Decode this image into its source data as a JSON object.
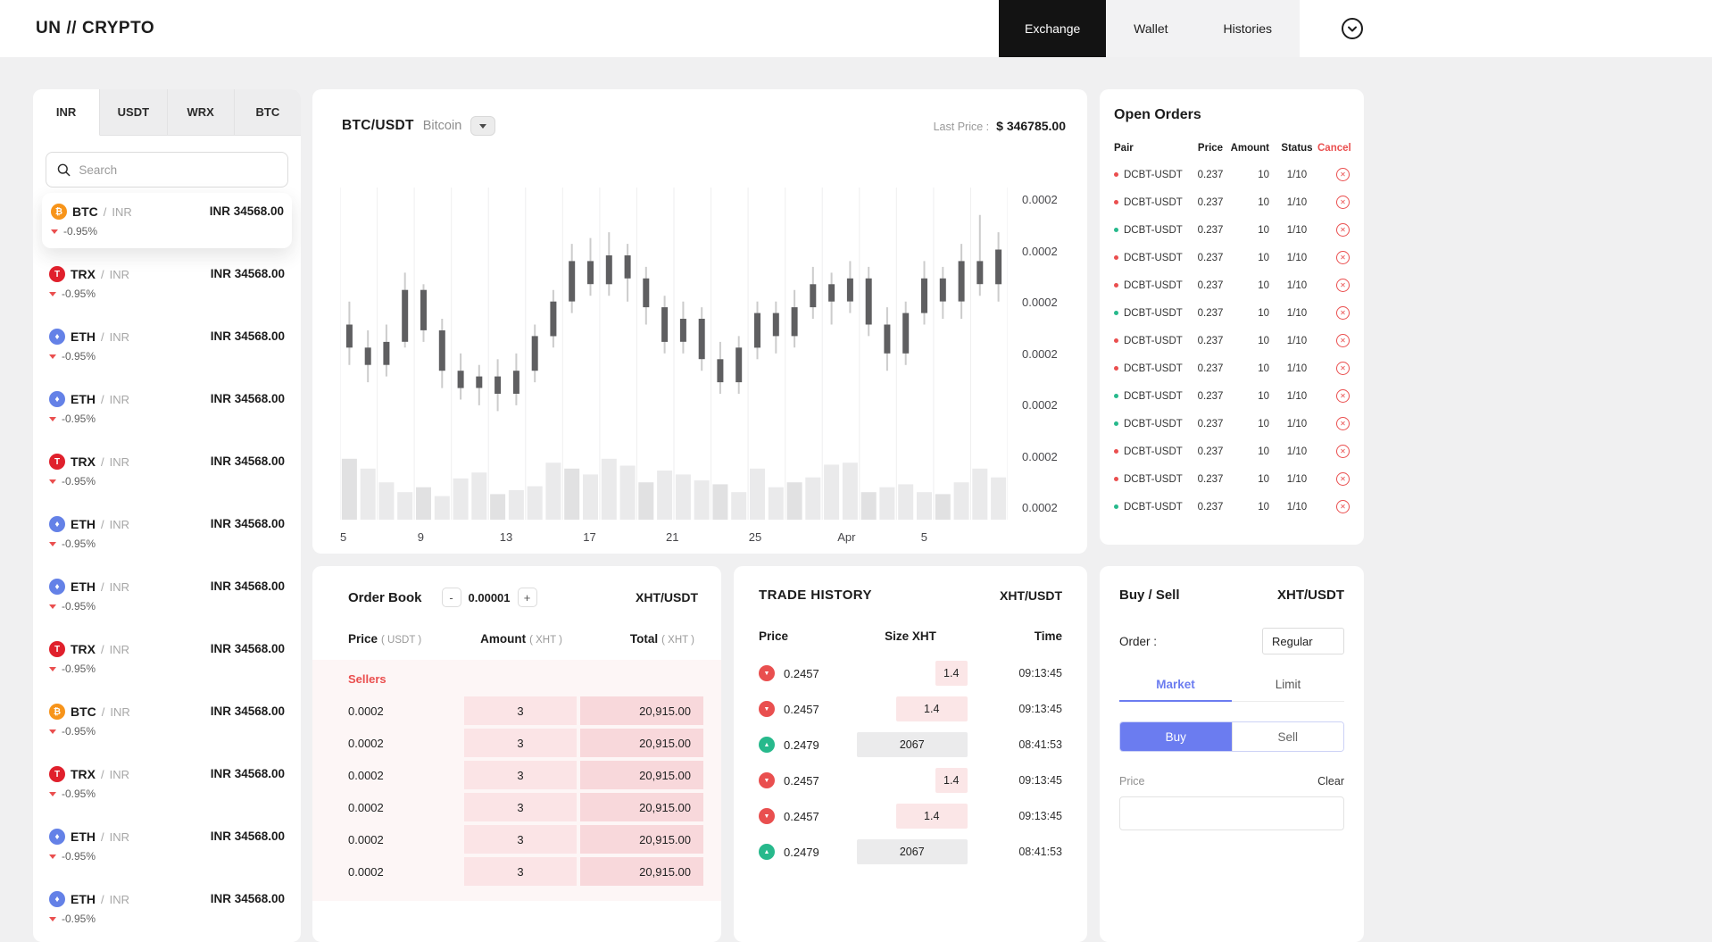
{
  "colors": {
    "accent": "#6b7cf0",
    "red": "#ea4f4f",
    "green": "#27b98c",
    "btc": "#f7941a",
    "trx": "#e0202c",
    "eth": "#6481e7"
  },
  "nav": {
    "logo": {
      "left": "UN",
      "slashes": "//",
      "right": "CRYPTO"
    },
    "items": [
      {
        "label": "Exchange"
      },
      {
        "label": "Wallet"
      },
      {
        "label": "Histories"
      }
    ]
  },
  "sidebar": {
    "tabs": [
      "INR",
      "USDT",
      "WRX",
      "BTC"
    ],
    "search_placeholder": "Search",
    "pairs": [
      {
        "icon": "btc",
        "symbol": "BTC",
        "sep": "/",
        "quote": "INR",
        "change": "-0.95%",
        "price": "INR 34568.00"
      },
      {
        "icon": "trx",
        "symbol": "TRX",
        "sep": "/",
        "quote": "INR",
        "change": "-0.95%",
        "price": "INR 34568.00"
      },
      {
        "icon": "eth",
        "symbol": "ETH",
        "sep": "/",
        "quote": "INR",
        "change": "-0.95%",
        "price": "INR 34568.00"
      },
      {
        "icon": "eth",
        "symbol": "ETH",
        "sep": "/",
        "quote": "INR",
        "change": "-0.95%",
        "price": "INR 34568.00"
      },
      {
        "icon": "trx",
        "symbol": "TRX",
        "sep": "/",
        "quote": "INR",
        "change": "-0.95%",
        "price": "INR 34568.00"
      },
      {
        "icon": "eth",
        "symbol": "ETH",
        "sep": "/",
        "quote": "INR",
        "change": "-0.95%",
        "price": "INR 34568.00"
      },
      {
        "icon": "eth",
        "symbol": "ETH",
        "sep": "/",
        "quote": "INR",
        "change": "-0.95%",
        "price": "INR 34568.00"
      },
      {
        "icon": "trx",
        "symbol": "TRX",
        "sep": "/",
        "quote": "INR",
        "change": "-0.95%",
        "price": "INR 34568.00"
      },
      {
        "icon": "btc",
        "symbol": "BTC",
        "sep": "/",
        "quote": "INR",
        "change": "-0.95%",
        "price": "INR 34568.00"
      },
      {
        "icon": "trx",
        "symbol": "TRX",
        "sep": "/",
        "quote": "INR",
        "change": "-0.95%",
        "price": "INR 34568.00"
      },
      {
        "icon": "eth",
        "symbol": "ETH",
        "sep": "/",
        "quote": "INR",
        "change": "-0.95%",
        "price": "INR 34568.00"
      },
      {
        "icon": "eth",
        "symbol": "ETH",
        "sep": "/",
        "quote": "INR",
        "change": "-0.95%",
        "price": "INR 34568.00"
      }
    ]
  },
  "chart": {
    "pair": "BTC/USDT",
    "coin_name": "Bitcoin",
    "last_price_label": "Last Price :",
    "last_price": "$ 346785.00"
  },
  "chart_data": {
    "type": "candlestick",
    "x_ticks": [
      "5",
      "9",
      "13",
      "17",
      "21",
      "25",
      "Apr",
      "5"
    ],
    "y_ticks": [
      "0.0002",
      "0.0002",
      "0.0002",
      "0.0002",
      "0.0002",
      "0.0002",
      "0.0002"
    ],
    "candles": [
      [
        50,
        42,
        58,
        36,
        62
      ],
      [
        42,
        36,
        48,
        30,
        52
      ],
      [
        36,
        44,
        50,
        32,
        38
      ],
      [
        44,
        62,
        68,
        42,
        28
      ],
      [
        62,
        48,
        64,
        44,
        33
      ],
      [
        48,
        34,
        52,
        28,
        24
      ],
      [
        34,
        28,
        40,
        24,
        42
      ],
      [
        28,
        32,
        36,
        22,
        48
      ],
      [
        32,
        26,
        38,
        20,
        26
      ],
      [
        26,
        34,
        40,
        22,
        30
      ],
      [
        34,
        46,
        50,
        30,
        34
      ],
      [
        46,
        58,
        62,
        42,
        58
      ],
      [
        58,
        72,
        78,
        54,
        52
      ],
      [
        72,
        64,
        80,
        60,
        46
      ],
      [
        64,
        74,
        82,
        60,
        62
      ],
      [
        74,
        66,
        78,
        58,
        55
      ],
      [
        66,
        56,
        70,
        50,
        38
      ],
      [
        56,
        44,
        60,
        40,
        50
      ],
      [
        44,
        52,
        58,
        40,
        46
      ],
      [
        52,
        38,
        56,
        34,
        40
      ],
      [
        38,
        30,
        44,
        26,
        36
      ],
      [
        30,
        42,
        46,
        26,
        28
      ],
      [
        42,
        54,
        58,
        38,
        52
      ],
      [
        54,
        46,
        58,
        40,
        33
      ],
      [
        46,
        56,
        62,
        42,
        38
      ],
      [
        56,
        64,
        70,
        52,
        43
      ],
      [
        64,
        58,
        68,
        50,
        56
      ],
      [
        58,
        66,
        72,
        54,
        58
      ],
      [
        66,
        50,
        70,
        46,
        28
      ],
      [
        50,
        40,
        56,
        34,
        33
      ],
      [
        40,
        54,
        58,
        36,
        36
      ],
      [
        54,
        66,
        72,
        50,
        28
      ],
      [
        66,
        58,
        70,
        52,
        26
      ],
      [
        58,
        72,
        78,
        52,
        38
      ],
      [
        72,
        64,
        88,
        60,
        52
      ],
      [
        64,
        76,
        82,
        58,
        43
      ]
    ]
  },
  "order_book": {
    "title": "Order Book",
    "minus": "-",
    "plus": "+",
    "step_value": "0.00001",
    "pair": "XHT/USDT",
    "headers": [
      {
        "label": "Price",
        "unit": "( USDT )"
      },
      {
        "label": "Amount",
        "unit": "( XHT )"
      },
      {
        "label": "Total",
        "unit": "( XHT )"
      }
    ],
    "sellers_label": "Sellers",
    "sellers": [
      {
        "price": "0.0002",
        "amount": "3",
        "total": "20,915.00"
      },
      {
        "price": "0.0002",
        "amount": "3",
        "total": "20,915.00"
      },
      {
        "price": "0.0002",
        "amount": "3",
        "total": "20,915.00"
      },
      {
        "price": "0.0002",
        "amount": "3",
        "total": "20,915.00"
      },
      {
        "price": "0.0002",
        "amount": "3",
        "total": "20,915.00"
      },
      {
        "price": "0.0002",
        "amount": "3",
        "total": "20,915.00"
      }
    ]
  },
  "trade_history": {
    "title": "TRADE HISTORY",
    "pair": "XHT/USDT",
    "headers": [
      "Price",
      "Size XHT",
      "Time"
    ],
    "rows": [
      {
        "dir": "down",
        "price": "0.2457",
        "size": "1.4",
        "time": "09:13:45",
        "band": 36
      },
      {
        "dir": "down",
        "price": "0.2457",
        "size": "1.4",
        "time": "09:13:45",
        "band": 80
      },
      {
        "dir": "up",
        "price": "0.2479",
        "size": "2067",
        "time": "08:41:53",
        "band": 124
      },
      {
        "dir": "down",
        "price": "0.2457",
        "size": "1.4",
        "time": "09:13:45",
        "band": 36
      },
      {
        "dir": "down",
        "price": "0.2457",
        "size": "1.4",
        "time": "09:13:45",
        "band": 80
      },
      {
        "dir": "up",
        "price": "0.2479",
        "size": "2067",
        "time": "08:41:53",
        "band": 124
      }
    ]
  },
  "open_orders": {
    "title": "Open Orders",
    "headers": [
      "Pair",
      "Price",
      "Amount",
      "Status",
      "Cancel"
    ],
    "rows": [
      {
        "dot": "red",
        "pair": "DCBT-USDT",
        "price": "0.237",
        "amount": "10",
        "status": "1/10"
      },
      {
        "dot": "red",
        "pair": "DCBT-USDT",
        "price": "0.237",
        "amount": "10",
        "status": "1/10"
      },
      {
        "dot": "green",
        "pair": "DCBT-USDT",
        "price": "0.237",
        "amount": "10",
        "status": "1/10"
      },
      {
        "dot": "red",
        "pair": "DCBT-USDT",
        "price": "0.237",
        "amount": "10",
        "status": "1/10"
      },
      {
        "dot": "red",
        "pair": "DCBT-USDT",
        "price": "0.237",
        "amount": "10",
        "status": "1/10"
      },
      {
        "dot": "green",
        "pair": "DCBT-USDT",
        "price": "0.237",
        "amount": "10",
        "status": "1/10"
      },
      {
        "dot": "red",
        "pair": "DCBT-USDT",
        "price": "0.237",
        "amount": "10",
        "status": "1/10"
      },
      {
        "dot": "red",
        "pair": "DCBT-USDT",
        "price": "0.237",
        "amount": "10",
        "status": "1/10"
      },
      {
        "dot": "green",
        "pair": "DCBT-USDT",
        "price": "0.237",
        "amount": "10",
        "status": "1/10"
      },
      {
        "dot": "green",
        "pair": "DCBT-USDT",
        "price": "0.237",
        "amount": "10",
        "status": "1/10"
      },
      {
        "dot": "red",
        "pair": "DCBT-USDT",
        "price": "0.237",
        "amount": "10",
        "status": "1/10"
      },
      {
        "dot": "red",
        "pair": "DCBT-USDT",
        "price": "0.237",
        "amount": "10",
        "status": "1/10"
      },
      {
        "dot": "green",
        "pair": "DCBT-USDT",
        "price": "0.237",
        "amount": "10",
        "status": "1/10"
      }
    ]
  },
  "buy_sell": {
    "title": "Buy / Sell",
    "pair": "XHT/USDT",
    "order_label": "Order :",
    "order_value": "Regular",
    "tabs": [
      "Market",
      "Limit"
    ],
    "buy": "Buy",
    "sell": "Sell",
    "price_label": "Price",
    "clear": "Clear"
  }
}
